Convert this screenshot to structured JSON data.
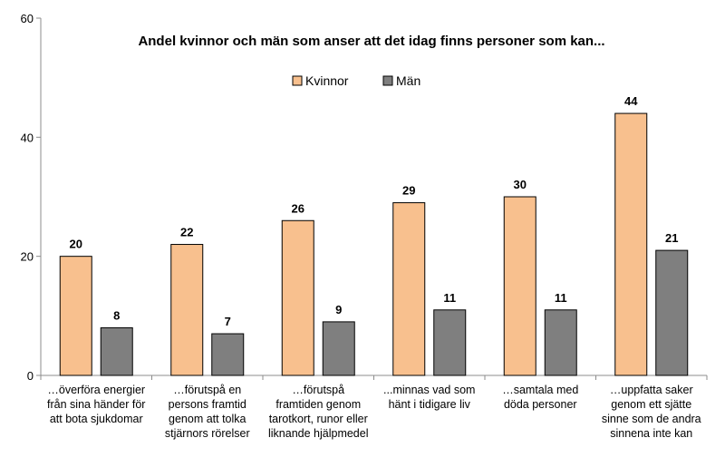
{
  "chart_data": {
    "type": "bar",
    "title": "Andel kvinnor och män som anser att det idag finns personer som kan...",
    "xlabel": "",
    "ylabel": "",
    "ylim": [
      0,
      60
    ],
    "yticks": [
      0,
      20,
      40,
      60
    ],
    "grid": false,
    "legend_position": "top-center",
    "categories": [
      [
        "…överföra energier",
        "från sina händer för",
        "att bota sjukdomar"
      ],
      [
        "…förutspå en",
        "persons framtid",
        "genom att tolka",
        "stjärnors rörelser"
      ],
      [
        "…förutspå",
        "framtiden genom",
        "tarotkort, runor eller",
        "liknande hjälpmedel"
      ],
      [
        "...minnas vad som",
        "hänt i tidigare liv"
      ],
      [
        "…samtala med",
        "döda personer"
      ],
      [
        "…uppfatta saker",
        "genom ett sjätte",
        "sinne som de andra",
        "sinnena inte kan"
      ]
    ],
    "series": [
      {
        "name": "Kvinnor",
        "color": "#F8C08E",
        "values": [
          20,
          22,
          26,
          29,
          30,
          44
        ]
      },
      {
        "name": "Män",
        "color": "#7F7F7F",
        "values": [
          8,
          7,
          9,
          11,
          11,
          21
        ]
      }
    ]
  }
}
